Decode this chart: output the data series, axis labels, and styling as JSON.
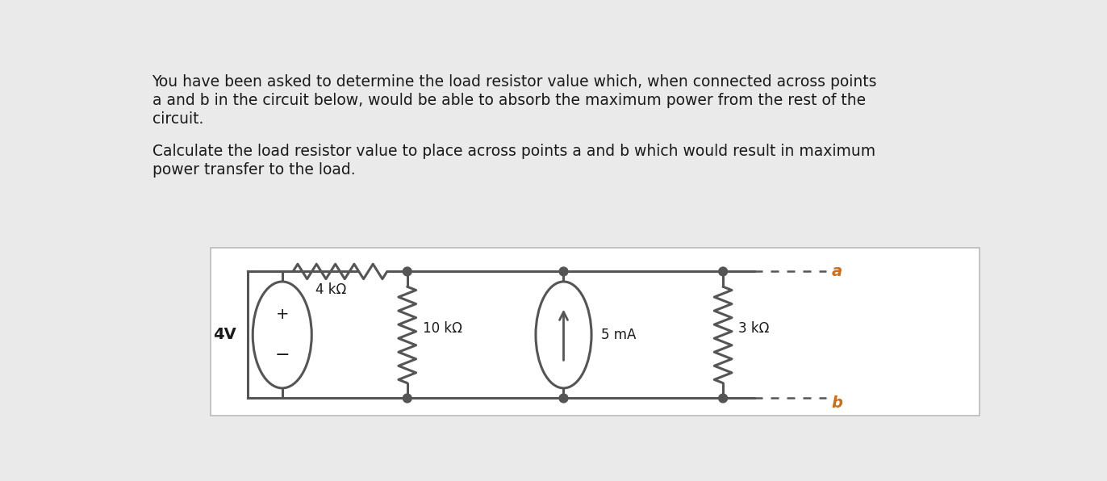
{
  "bg_color": "#eaeaea",
  "panel_color": "#ffffff",
  "text_color": "#1a1a1a",
  "line_color": "#555555",
  "node_color": "#555555",
  "terminal_color": "#c87020",
  "paragraph1_line1": "You have been asked to determine the load resistor value which, when connected across points",
  "paragraph1_line2": "a and b in the circuit below, would be able to absorb the maximum power from the rest of the",
  "paragraph1_line3": "circuit.",
  "paragraph2_line1": "Calculate the load resistor value to place across points a and b which would result in maximum",
  "paragraph2_line2": "power transfer to the load.",
  "voltage_label": "4V",
  "resistor1_label": "4 kΩ",
  "resistor2_label": "10 kΩ",
  "current_label": "5 mA",
  "resistor3_label": "3 kΩ",
  "node_a_label": "a",
  "node_b_label": "b",
  "fig_width": 13.72,
  "fig_height": 5.96
}
